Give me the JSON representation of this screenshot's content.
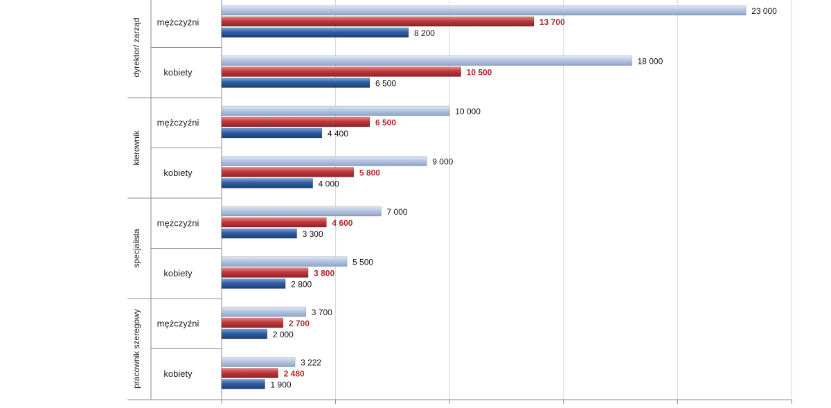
{
  "chart_data": {
    "type": "bar",
    "orientation": "horizontal",
    "groups": [
      "dyrektor/ zarząd",
      "kierownik",
      "specjalista",
      "pracownik szeregowy"
    ],
    "categories": [
      "mężczyźni",
      "kobiety",
      "mężczyźni",
      "kobiety",
      "mężczyźni",
      "kobiety",
      "mężczyźni",
      "kobiety"
    ],
    "group_of_category": [
      0,
      0,
      1,
      1,
      2,
      2,
      3,
      3
    ],
    "series": [
      {
        "values": [
          23000,
          18000,
          10000,
          9000,
          7000,
          5500,
          3700,
          3222
        ],
        "color": "#a7b9d8"
      },
      {
        "values": [
          13700,
          10500,
          6500,
          5800,
          4600,
          3800,
          2700,
          2480
        ],
        "color": "#c0393c",
        "label_color": "#b0272c",
        "label_bold": true
      },
      {
        "values": [
          8200,
          6500,
          4400,
          4000,
          3300,
          2800,
          2000,
          1900
        ],
        "color": "#2f5ea4"
      }
    ],
    "value_labels": [
      [
        "23 000",
        "18 000",
        "10 000",
        "9 000",
        "7 000",
        "5 500",
        "3 700",
        "3 222"
      ],
      [
        "13 700",
        "10 500",
        "6 500",
        "5 800",
        "4 600",
        "3 800",
        "2 700",
        "2 480"
      ],
      [
        "8 200",
        "6 500",
        "4 400",
        "4 000",
        "3 300",
        "2 800",
        "2 000",
        "1 900"
      ]
    ],
    "xlim": [
      0,
      25000
    ],
    "grid": true
  }
}
